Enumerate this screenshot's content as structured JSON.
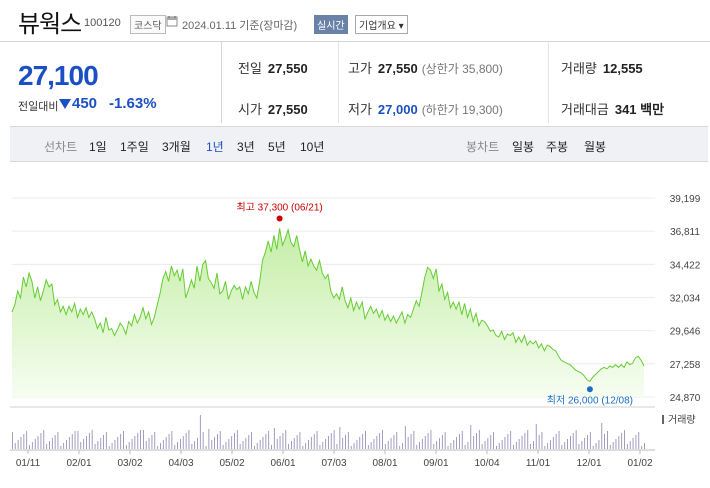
{
  "header": {
    "stock_name": "뷰웍스",
    "stock_code": "100120",
    "market": "코스닥",
    "date_label": "2024.01.11  기준(장마감)",
    "realtime_label": "실시간",
    "company_overview_label": "기업개요 ▾"
  },
  "price": {
    "current": "27,100",
    "change_label": "전일대비",
    "change": "450",
    "change_direction": "down",
    "change_pct": "-1.63%",
    "accent_color": "#1b4fc4"
  },
  "stats": {
    "prev_close_label": "전일",
    "prev_close": "27,550",
    "high_label": "고가",
    "high": "27,550",
    "upper_limit": "(상한가 35,800)",
    "volume_label": "거래량",
    "volume": "12,555",
    "open_label": "시가",
    "open": "27,550",
    "low_label": "저가",
    "low": "27,000",
    "lower_limit": "(하한가 19,300)",
    "amount_label": "거래대금",
    "amount": "341 백만"
  },
  "tabs": {
    "line_label": "선차트",
    "line_items": [
      "1일",
      "1주일",
      "3개월",
      "1년",
      "3년",
      "5년",
      "10년"
    ],
    "line_active": "1년",
    "candle_label": "봉차트",
    "candle_items": [
      "일봉",
      "주봉",
      "월봉"
    ]
  },
  "chart_data": {
    "type": "area",
    "ylim": [
      24870,
      39199
    ],
    "y_ticks": [
      "39,199",
      "36,811",
      "34,422",
      "32,034",
      "29,646",
      "27,258",
      "24,870"
    ],
    "x_ticks": [
      "01/11",
      "02/01",
      "03/02",
      "04/03",
      "05/02",
      "06/01",
      "07/03",
      "08/01",
      "09/01",
      "10/04",
      "11/01",
      "12/01",
      "01/02"
    ],
    "series": [
      {
        "values": [
          31000,
          31500,
          32500,
          32000,
          33500,
          32800,
          33800,
          33200,
          32000,
          32800,
          31800,
          32500,
          33300,
          32800,
          33000,
          31500,
          31900,
          31000,
          31400,
          30800,
          31400,
          31000,
          31600,
          30600,
          31200,
          30800,
          31300,
          30600,
          31000,
          30500,
          29800,
          30200,
          29500,
          30600,
          29700,
          29800,
          29300,
          29700,
          30200,
          29900,
          29400,
          30300,
          30000,
          30800,
          30200,
          30600,
          31300,
          30500,
          31000,
          30100,
          30600,
          31500,
          32300,
          33400,
          33900,
          33200,
          34300,
          33600,
          34000,
          33200,
          34100,
          32000,
          32600,
          33300,
          32700,
          34300,
          33200,
          34400,
          34700,
          33400,
          33100,
          32700,
          33800,
          32300,
          32500,
          33200,
          31900,
          32500,
          32900,
          32600,
          32800,
          31900,
          32800,
          32300,
          33200,
          32400,
          32000,
          33200,
          34700,
          35300,
          36100,
          35300,
          36500,
          35500,
          37000,
          35800,
          36300,
          36900,
          36000,
          35700,
          36500,
          35500,
          34600,
          35400,
          34300,
          34800,
          34300,
          34000,
          34700,
          33800,
          33400,
          33700,
          32500,
          32000,
          32300,
          31900,
          32800,
          31800,
          31300,
          32000,
          31100,
          31700,
          31200,
          31700,
          30500,
          31000,
          31400,
          30900,
          31200,
          30600,
          31100,
          30400,
          30800,
          30300,
          30700,
          30200,
          30600,
          31000,
          30200,
          30800,
          30600,
          31200,
          31800,
          31400,
          32400,
          33500,
          34200,
          34000,
          33400,
          34100,
          32500,
          33000,
          31900,
          32400,
          31300,
          31700,
          31200,
          31700,
          30800,
          31600,
          30600,
          31200,
          30300,
          30900,
          30000,
          30400,
          30300,
          30000,
          29600,
          29700,
          29300,
          29200,
          29600,
          29000,
          29400,
          29300,
          29500,
          28800,
          29200,
          28800,
          29300,
          28600,
          28900,
          28700,
          28900,
          28400,
          28700,
          28200,
          28600,
          28500,
          28300,
          28200,
          27800,
          27500,
          27400,
          27300,
          27200,
          27000,
          26800,
          26700,
          26600,
          26400,
          26100,
          26000,
          26300,
          26500,
          26700,
          26900,
          27000,
          26900,
          27100,
          27000,
          27200,
          27000,
          27200,
          27000,
          27400,
          27200,
          27300,
          27700,
          27800,
          27500,
          27100
        ]
      }
    ],
    "high_annotation": "최고 37,300 (06/21)",
    "low_annotation": "최저 26,000 (12/08)",
    "volume_label": "거래량",
    "line_color": "#66cc33",
    "fill_color": "#cdf0b4",
    "high_color": "#cc0000",
    "low_color": "#1b6fc4"
  }
}
